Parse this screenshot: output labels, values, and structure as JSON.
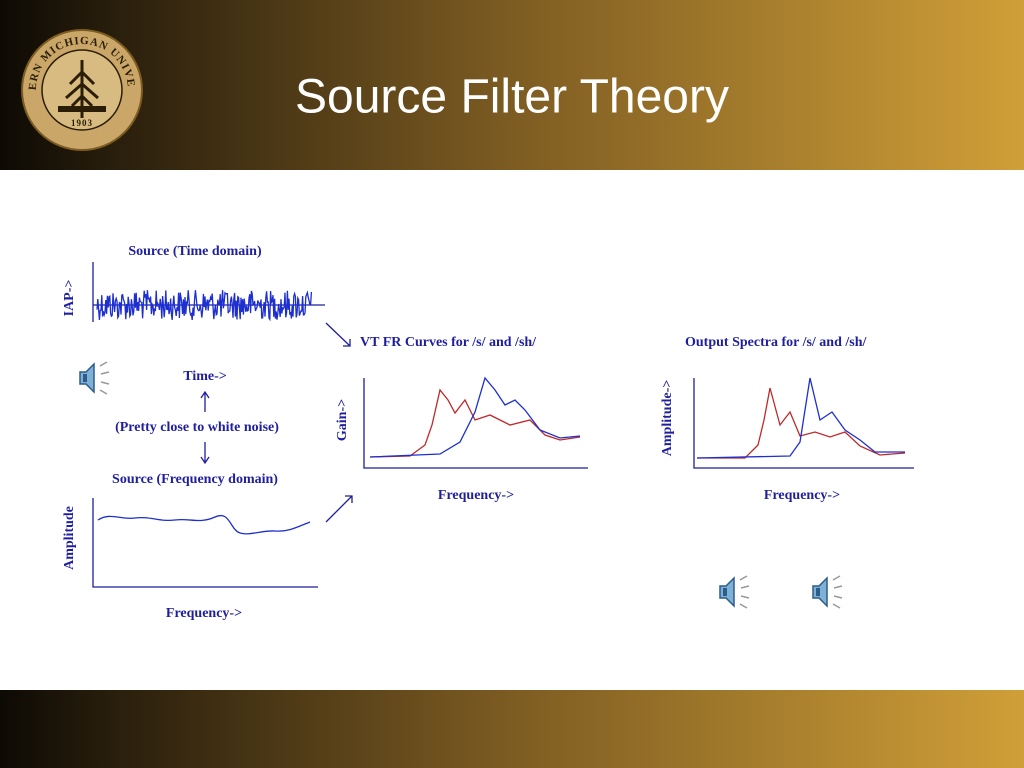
{
  "header": {
    "title": "Source Filter Theory",
    "logo": {
      "name": "WESTERN MICHIGAN UNIVERSITY",
      "year": "1903"
    }
  },
  "diagram": {
    "source_time": {
      "title": "Source (Time domain)",
      "y_label": "IAP->",
      "x_label": "Time->"
    },
    "note": "(Pretty close to white noise)",
    "source_frequency": {
      "title": "Source (Frequency domain)",
      "y_label": "Amplitude",
      "x_label": "Frequency->"
    },
    "vt_curves": {
      "title": "VT FR Curves for /s/ and /sh/",
      "y_label": "Gain->",
      "x_label": "Frequency->"
    },
    "output_spectra": {
      "title": "Output Spectra for /s/ and /sh/",
      "y_label": "Amplitude->",
      "x_label": "Frequency->"
    }
  }
}
